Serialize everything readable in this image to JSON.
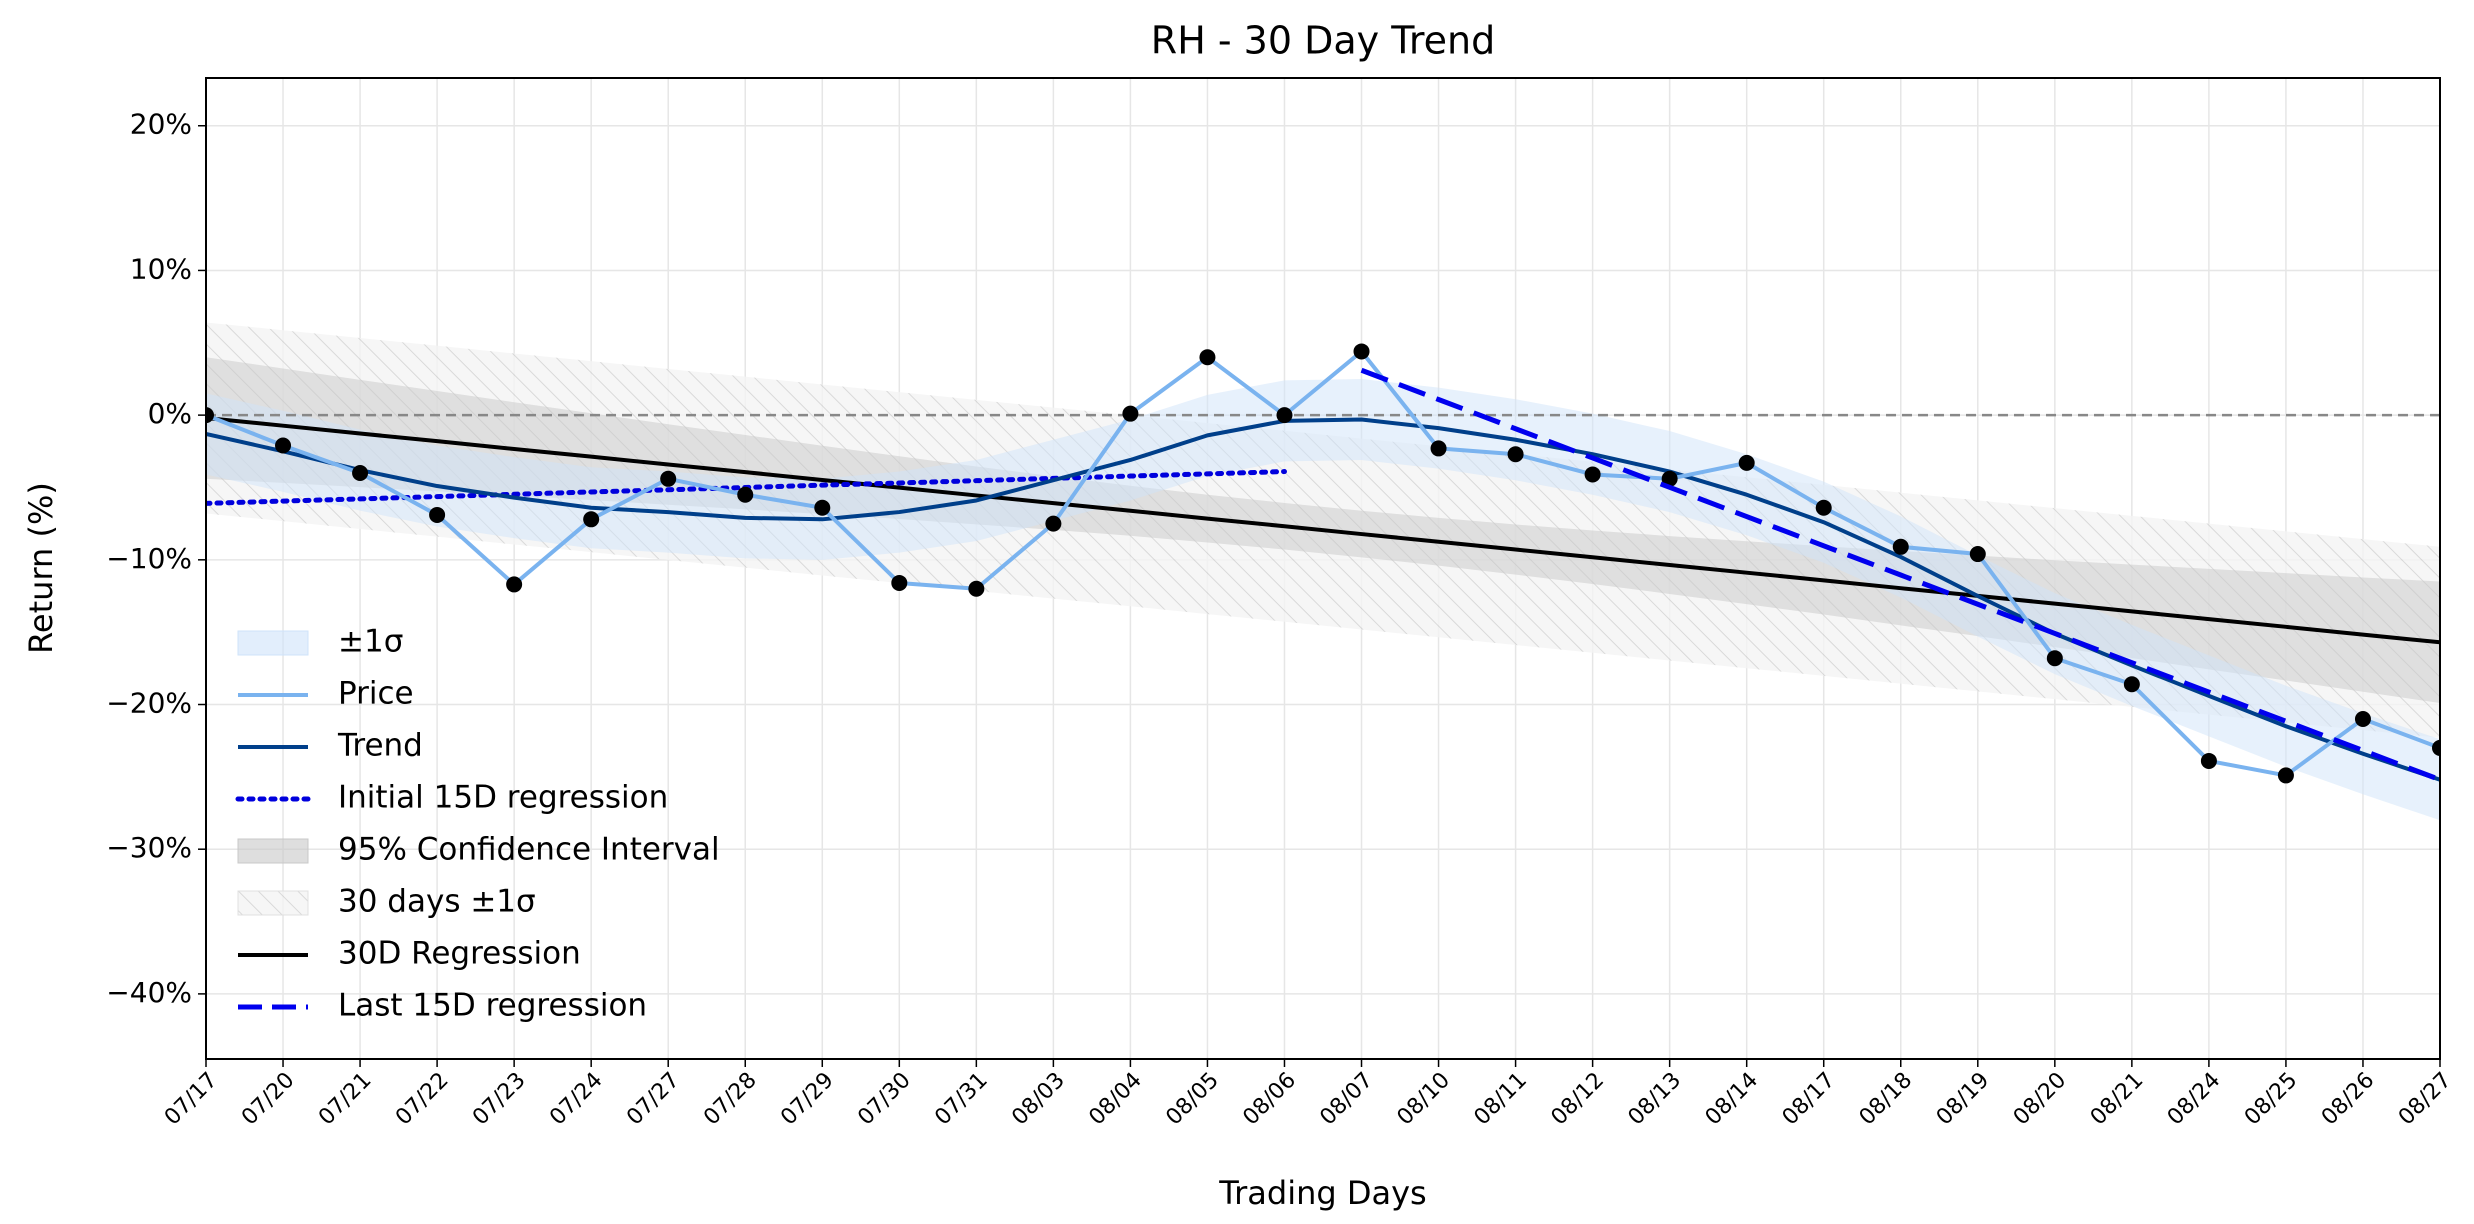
{
  "chart_data": {
    "type": "line",
    "title": "RH - 30 Day Trend",
    "xlabel": "Trading Days",
    "ylabel": "Return (%)",
    "categories": [
      "07/17",
      "07/20",
      "07/21",
      "07/22",
      "07/23",
      "07/24",
      "07/27",
      "07/28",
      "07/29",
      "07/30",
      "07/31",
      "08/03",
      "08/04",
      "08/05",
      "08/06",
      "08/07",
      "08/10",
      "08/11",
      "08/12",
      "08/13",
      "08/14",
      "08/17",
      "08/18",
      "08/19",
      "08/20",
      "08/21",
      "08/24",
      "08/25",
      "08/26",
      "08/27"
    ],
    "ylim": [
      -44.5,
      23.3
    ],
    "yticks": [
      {
        "value": 20,
        "label": "20%"
      },
      {
        "value": 10,
        "label": "10%"
      },
      {
        "value": 0,
        "label": "0%"
      },
      {
        "value": -10,
        "label": "−10%"
      },
      {
        "value": -20,
        "label": "−20%"
      },
      {
        "value": -30,
        "label": "−30%"
      },
      {
        "value": -40,
        "label": "−40%"
      }
    ],
    "grid": true,
    "legend": "lower left",
    "reference_line": {
      "value": 0,
      "color": "#888888",
      "style": "dashed"
    },
    "series": [
      {
        "name": "±1σ",
        "style": "band",
        "color": "#cfe3fa",
        "upper": [
          1.5,
          0.3,
          -1.0,
          -2.1,
          -2.9,
          -3.6,
          -3.9,
          -4.3,
          -4.4,
          -3.9,
          -3.1,
          -1.7,
          -0.3,
          1.4,
          2.4,
          2.5,
          1.9,
          1.1,
          0.1,
          -1.1,
          -2.7,
          -4.6,
          -7.0,
          -9.7,
          -12.3,
          -14.5,
          -16.6,
          -18.7,
          -20.6,
          -22.4
        ],
        "lower": [
          -4.1,
          -5.3,
          -6.6,
          -7.7,
          -8.5,
          -9.2,
          -9.5,
          -9.9,
          -10.0,
          -9.5,
          -8.7,
          -7.3,
          -5.9,
          -4.2,
          -3.2,
          -3.1,
          -3.7,
          -4.5,
          -5.5,
          -6.7,
          -8.3,
          -10.2,
          -12.6,
          -15.3,
          -17.9,
          -20.1,
          -22.2,
          -24.3,
          -26.2,
          -28.0
        ]
      },
      {
        "name": "Price",
        "style": "solid",
        "color": "#7ab3ef",
        "markers": true,
        "marker_color": "#000000",
        "values": [
          0,
          -2.1,
          -4.0,
          -6.9,
          -11.7,
          -7.2,
          -4.4,
          -5.5,
          -6.4,
          -11.6,
          -12.0,
          -7.5,
          0.1,
          4.0,
          0,
          4.4,
          -2.3,
          -2.7,
          -4.1,
          -4.4,
          -3.3,
          -6.4,
          -9.1,
          -9.6,
          -16.8,
          -18.6,
          -23.9,
          -24.9,
          -21.0,
          -23.0
        ]
      },
      {
        "name": "Trend",
        "style": "solid",
        "color": "#003f8a",
        "values": [
          -1.3,
          -2.5,
          -3.8,
          -4.9,
          -5.7,
          -6.4,
          -6.7,
          -7.1,
          -7.2,
          -6.7,
          -5.9,
          -4.5,
          -3.1,
          -1.4,
          -0.4,
          -0.3,
          -0.9,
          -1.7,
          -2.7,
          -3.9,
          -5.5,
          -7.4,
          -9.8,
          -12.5,
          -15.1,
          -17.3,
          -19.4,
          -21.5,
          -23.4,
          -25.2
        ]
      },
      {
        "name": "Initial 15D regression",
        "style": "dotted",
        "color": "#0000dd",
        "values": [
          -6.1,
          -5.94,
          -5.79,
          -5.63,
          -5.47,
          -5.31,
          -5.16,
          -5.0,
          -4.84,
          -4.69,
          -4.53,
          -4.37,
          -4.21,
          -4.06,
          -3.9,
          null,
          null,
          null,
          null,
          null,
          null,
          null,
          null,
          null,
          null,
          null,
          null,
          null,
          null,
          null
        ]
      },
      {
        "name": "95% Confidence Interval",
        "style": "band",
        "color": "#c8c8c8",
        "upper": [
          4.0,
          3.22,
          2.44,
          1.67,
          0.89,
          0.13,
          -0.63,
          -1.37,
          -2.12,
          -2.84,
          -3.55,
          -4.23,
          -4.88,
          -5.5,
          -6.07,
          -6.61,
          -7.1,
          -7.56,
          -7.97,
          -8.36,
          -8.72,
          -9.06,
          -9.39,
          -9.71,
          -10.03,
          -10.33,
          -10.63,
          -10.92,
          -11.22,
          -11.5
        ],
        "lower": [
          -4.4,
          -4.68,
          -4.98,
          -5.27,
          -5.57,
          -5.87,
          -6.19,
          -6.51,
          -6.84,
          -7.18,
          -7.55,
          -7.93,
          -8.34,
          -8.8,
          -9.29,
          -9.83,
          -10.4,
          -11.02,
          -11.67,
          -12.36,
          -13.06,
          -13.78,
          -14.53,
          -15.27,
          -16.03,
          -16.79,
          -17.57,
          -18.34,
          -19.12,
          -19.9
        ]
      },
      {
        "name": "30 days ±1σ",
        "style": "hatch",
        "color": "#dddddd",
        "upper": [
          6.4,
          5.87,
          5.33,
          4.8,
          4.26,
          3.73,
          3.19,
          2.66,
          2.12,
          1.59,
          1.05,
          0.52,
          -0.01,
          -0.55,
          -1.08,
          -1.62,
          -2.15,
          -2.69,
          -3.22,
          -3.76,
          -4.29,
          -4.82,
          -5.36,
          -5.89,
          -6.43,
          -6.96,
          -7.5,
          -8.03,
          -8.57,
          -9.1
        ],
        "lower": [
          -6.8,
          -7.33,
          -7.87,
          -8.4,
          -8.94,
          -9.47,
          -10.01,
          -10.54,
          -11.08,
          -11.61,
          -12.15,
          -12.68,
          -13.21,
          -13.75,
          -14.28,
          -14.82,
          -15.35,
          -15.89,
          -16.42,
          -16.96,
          -17.49,
          -18.02,
          -18.56,
          -19.09,
          -19.63,
          -20.16,
          -20.7,
          -21.23,
          -21.77,
          -22.3
        ]
      },
      {
        "name": "30D Regression",
        "style": "solid",
        "color": "#000000",
        "values": [
          -0.2,
          -0.73,
          -1.27,
          -1.8,
          -2.34,
          -2.87,
          -3.41,
          -3.94,
          -4.48,
          -5.01,
          -5.55,
          -6.08,
          -6.61,
          -7.15,
          -7.68,
          -8.22,
          -8.75,
          -9.29,
          -9.82,
          -10.36,
          -10.89,
          -11.42,
          -11.96,
          -12.49,
          -13.03,
          -13.56,
          -14.1,
          -14.63,
          -15.17,
          -15.7
        ]
      },
      {
        "name": "Last 15D regression",
        "style": "dashed",
        "color": "#0000ee",
        "values": [
          null,
          null,
          null,
          null,
          null,
          null,
          null,
          null,
          null,
          null,
          null,
          null,
          null,
          null,
          null,
          3.1,
          1.08,
          -0.94,
          -2.96,
          -4.99,
          -7.01,
          -9.03,
          -11.05,
          -13.07,
          -15.09,
          -17.11,
          -19.14,
          -21.16,
          -23.18,
          -25.2
        ]
      }
    ]
  }
}
